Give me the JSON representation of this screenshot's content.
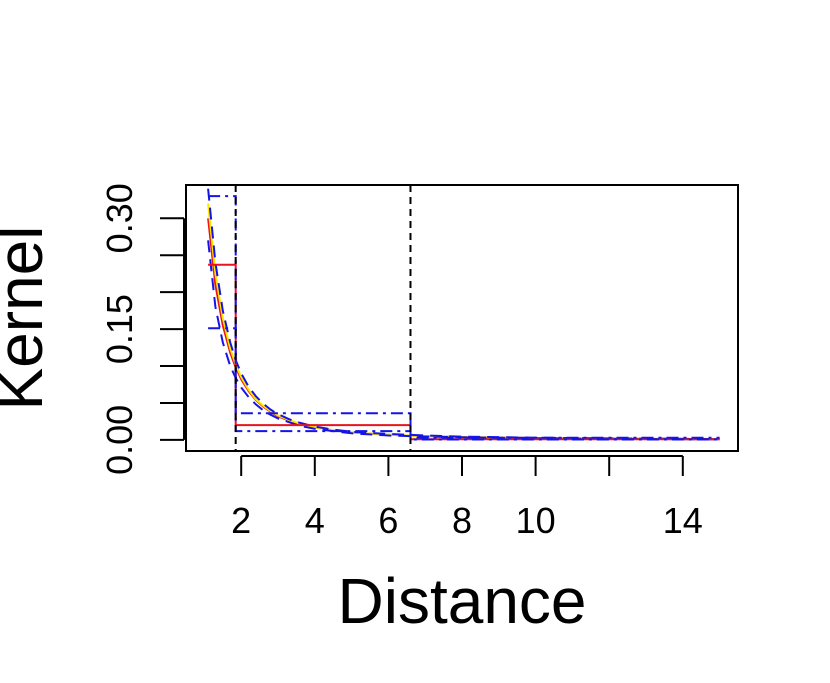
{
  "chart_data": {
    "type": "line",
    "xlabel": "Distance",
    "ylabel": "Kernel",
    "xlim": [
      0.5,
      15.5
    ],
    "ylim": [
      -0.015,
      0.345
    ],
    "x_ticks": [
      2,
      4,
      6,
      8,
      10,
      12,
      14
    ],
    "x_tick_labels": [
      "2",
      "4",
      "6",
      "8",
      "10",
      "",
      "14"
    ],
    "y_ticks": [
      0.0,
      0.05,
      0.1,
      0.15,
      0.2,
      0.25,
      0.3
    ],
    "y_tick_labels": [
      "0.00",
      "",
      "",
      "0.15",
      "",
      "",
      "0.30"
    ],
    "vlines": [
      1.85,
      6.6
    ],
    "colors": {
      "red": "#e8141e",
      "yellow": "#ffe800",
      "blue": "#1414e6",
      "black": "#000000"
    },
    "series": [
      {
        "color": "red",
        "style": "solid",
        "x": [
          1.1,
          1.3,
          1.5,
          1.7,
          1.85,
          2.0,
          2.2,
          2.4,
          2.6,
          2.8,
          3.0,
          3.3,
          3.6,
          4.0,
          4.5,
          5.0,
          6.0,
          7.0,
          8.0,
          9.0,
          10.0,
          11.0,
          12.0,
          13.0,
          14.0,
          15.0
        ],
        "y": [
          0.3,
          0.21,
          0.155,
          0.118,
          0.098,
          0.082,
          0.066,
          0.054,
          0.045,
          0.038,
          0.032,
          0.026,
          0.021,
          0.017,
          0.013,
          0.01,
          0.007,
          0.005,
          0.004,
          0.003,
          0.0025,
          0.002,
          0.0017,
          0.0014,
          0.0012,
          0.001
        ]
      },
      {
        "color": "yellow",
        "style": "solid",
        "x": [
          1.1,
          1.3,
          1.5,
          1.7,
          1.85,
          2.0,
          2.2,
          2.4,
          2.6,
          2.8,
          3.0,
          3.3,
          3.6,
          4.0,
          4.5,
          5.0,
          6.0,
          7.0,
          8.0,
          10.0,
          12.0,
          15.0
        ],
        "y": [
          0.32,
          0.225,
          0.165,
          0.124,
          0.102,
          0.085,
          0.068,
          0.055,
          0.046,
          0.039,
          0.033,
          0.027,
          0.022,
          0.017,
          0.013,
          0.01,
          0.007,
          0.005,
          0.004,
          0.0025,
          0.0017,
          0.001
        ]
      },
      {
        "color": "blue",
        "style": "dashed",
        "x": [
          1.1,
          1.3,
          1.5,
          1.7,
          1.85,
          2.0,
          2.2,
          2.4,
          2.6,
          2.8,
          3.0,
          3.3,
          3.6,
          4.0,
          4.5,
          5.0,
          6.0,
          7.0,
          8.0,
          10.0,
          12.0,
          15.0
        ],
        "y": [
          0.34,
          0.24,
          0.175,
          0.132,
          0.108,
          0.09,
          0.072,
          0.059,
          0.049,
          0.041,
          0.035,
          0.028,
          0.023,
          0.018,
          0.014,
          0.011,
          0.008,
          0.006,
          0.0045,
          0.003,
          0.002,
          0.0012
        ]
      },
      {
        "color": "blue",
        "style": "dashed",
        "x": [
          1.1,
          1.3,
          1.5,
          1.7,
          1.85,
          2.0,
          2.2,
          2.4,
          2.6,
          2.8,
          3.0,
          3.3,
          3.6,
          4.0,
          4.5,
          5.0,
          6.0,
          7.0,
          8.0,
          10.0,
          12.0,
          15.0
        ],
        "y": [
          0.27,
          0.18,
          0.132,
          0.1,
          0.084,
          0.071,
          0.058,
          0.048,
          0.04,
          0.034,
          0.029,
          0.024,
          0.019,
          0.015,
          0.012,
          0.009,
          0.006,
          0.0045,
          0.0035,
          0.0022,
          0.0015,
          0.0009
        ]
      },
      {
        "color": "red",
        "style": "step",
        "x": [
          1.1,
          1.85,
          1.85,
          6.6,
          6.6,
          15.0
        ],
        "y": [
          0.237,
          0.237,
          0.02,
          0.02,
          0.001,
          0.001
        ]
      },
      {
        "color": "blue",
        "style": "dashdot",
        "x": [
          1.1,
          1.85,
          1.85,
          6.6,
          6.6,
          15.0
        ],
        "y": [
          0.33,
          0.33,
          0.036,
          0.036,
          0.003,
          0.003
        ]
      },
      {
        "color": "blue",
        "style": "dashdot",
        "x": [
          1.1,
          1.85,
          1.85,
          6.6,
          6.6,
          15.0
        ],
        "y": [
          0.151,
          0.151,
          0.012,
          0.012,
          0.0005,
          0.0005
        ]
      }
    ]
  }
}
